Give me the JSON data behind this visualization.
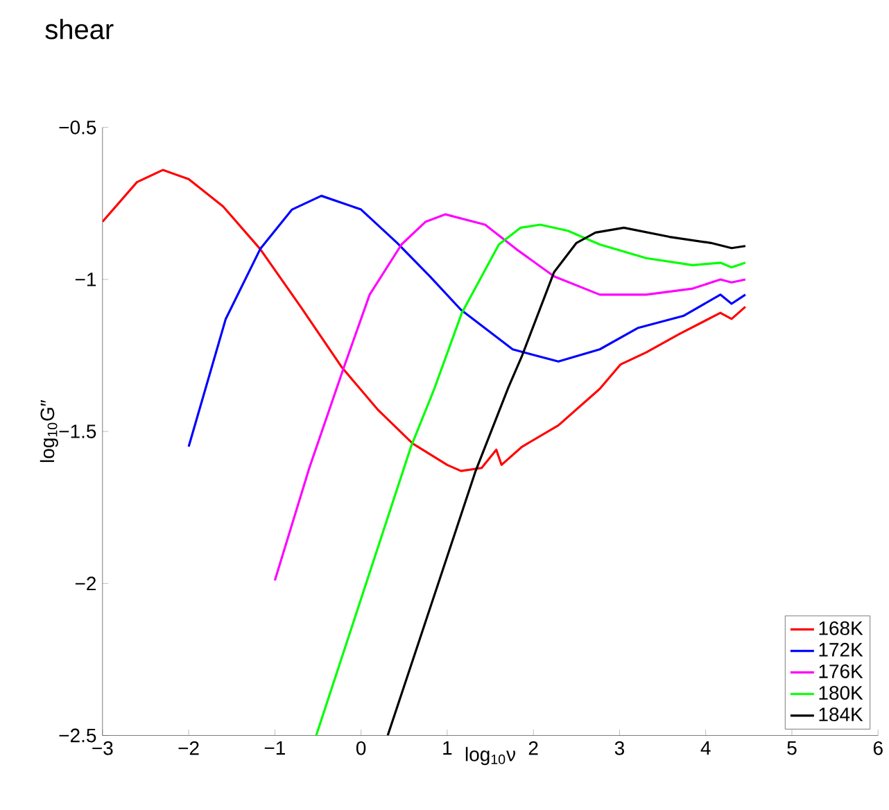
{
  "chart_data": {
    "type": "line",
    "title": "shear",
    "xlabel": "log$_{10}$ν",
    "ylabel": "log$_{10}$G″",
    "xlim": [
      -3,
      6
    ],
    "ylim": [
      -2.5,
      -0.5
    ],
    "xticks": [
      {
        "value": -3,
        "label": "−3"
      },
      {
        "value": -2,
        "label": "−2"
      },
      {
        "value": -1,
        "label": "−1"
      },
      0,
      1,
      2,
      3,
      4,
      5,
      6
    ],
    "yticks": [
      {
        "value": -2.5,
        "label": "−2.5"
      },
      {
        "value": -2,
        "label": "−2"
      },
      {
        "value": -1.5,
        "label": "−1.5"
      },
      {
        "value": -1,
        "label": "−1"
      },
      {
        "value": -0.5,
        "label": "−0.5"
      }
    ],
    "grid": false,
    "legend": "bottom right",
    "marker": "none",
    "line_style": "solid",
    "series": [
      {
        "name": "168K",
        "color": "#ff0000",
        "x": [
          -3.0,
          -2.6,
          -2.3,
          -2.0,
          -1.6,
          -1.17,
          -0.7,
          -0.22,
          0.2,
          0.6,
          1.0,
          1.16,
          1.4,
          1.57,
          1.63,
          1.87,
          2.29,
          2.77,
          3.01,
          3.31,
          3.69,
          4.17,
          4.3,
          4.46
        ],
        "values": [
          -0.81,
          -0.68,
          -0.64,
          -0.67,
          -0.76,
          -0.9,
          -1.09,
          -1.29,
          -1.43,
          -1.54,
          -1.61,
          -1.63,
          -1.62,
          -1.56,
          -1.61,
          -1.55,
          -1.48,
          -1.36,
          -1.28,
          -1.24,
          -1.18,
          -1.11,
          -1.13,
          -1.09
        ]
      },
      {
        "name": "172K",
        "color": "#0000ff",
        "x": [
          -2.0,
          -1.57,
          -1.17,
          -0.8,
          -0.46,
          0.0,
          0.42,
          0.8,
          1.16,
          1.76,
          2.29,
          2.77,
          3.21,
          3.74,
          4.17,
          4.3,
          4.46
        ],
        "values": [
          -1.55,
          -1.13,
          -0.9,
          -0.77,
          -0.725,
          -0.77,
          -0.88,
          -0.99,
          -1.1,
          -1.23,
          -1.27,
          -1.23,
          -1.16,
          -1.12,
          -1.05,
          -1.08,
          -1.05
        ]
      },
      {
        "name": "176K",
        "color": "#ff00ff",
        "x": [
          -1.0,
          -0.6,
          -0.2,
          0.1,
          0.47,
          0.75,
          0.98,
          1.44,
          1.8,
          2.24,
          2.77,
          3.31,
          3.85,
          4.17,
          4.3,
          4.46
        ],
        "values": [
          -1.99,
          -1.62,
          -1.29,
          -1.05,
          -0.885,
          -0.81,
          -0.786,
          -0.82,
          -0.9,
          -0.99,
          -1.05,
          -1.05,
          -1.03,
          -1.0,
          -1.01,
          -1.0
        ]
      },
      {
        "name": "180K",
        "color": "#00ff00",
        "x": [
          -0.52,
          0.58,
          0.85,
          1.17,
          1.6,
          1.85,
          2.08,
          2.4,
          2.77,
          3.31,
          3.85,
          4.17,
          4.3,
          4.46
        ],
        "values": [
          -2.5,
          -1.55,
          -1.36,
          -1.11,
          -0.885,
          -0.83,
          -0.82,
          -0.84,
          -0.885,
          -0.93,
          -0.953,
          -0.945,
          -0.96,
          -0.945
        ]
      },
      {
        "name": "184K",
        "color": "#000000",
        "x": [
          0.31,
          1.33,
          1.71,
          1.87,
          2.24,
          2.5,
          2.72,
          3.05,
          3.58,
          4.06,
          4.3,
          4.46
        ],
        "values": [
          -2.5,
          -1.63,
          -1.355,
          -1.25,
          -0.976,
          -0.88,
          -0.846,
          -0.83,
          -0.86,
          -0.88,
          -0.897,
          -0.89
        ]
      }
    ]
  }
}
